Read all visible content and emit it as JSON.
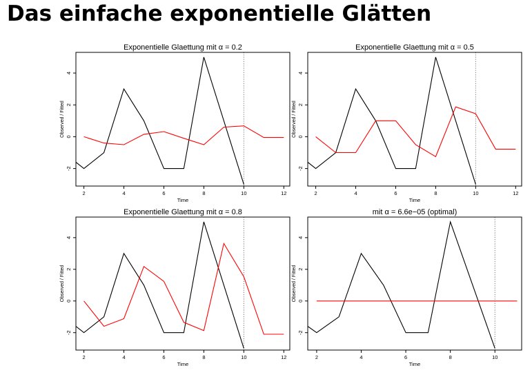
{
  "slide": {
    "title": "Das einfache exponentielle Glätten"
  },
  "chart_data": [
    {
      "type": "line",
      "title": "Exponentielle Glaettung mit α = 0.2",
      "xlabel": "Time",
      "ylabel": "Observed / Fitted",
      "xlim": [
        1.6,
        12.3
      ],
      "ylim": [
        -3.1,
        5.3
      ],
      "xticks": [
        2,
        4,
        6,
        8,
        10,
        12
      ],
      "yticks": [
        -2,
        0,
        2,
        4
      ],
      "vline": 10,
      "series": [
        {
          "color": "#000000",
          "x": [
            1,
            2,
            3,
            4,
            5,
            6,
            7,
            8,
            9,
            10
          ],
          "values": [
            -1,
            -2,
            -1,
            3,
            1,
            -2,
            -2,
            5,
            1,
            -3
          ]
        },
        {
          "color": "#ff0000",
          "x": [
            2,
            3,
            4,
            5,
            6,
            7,
            8,
            9,
            10,
            11,
            12
          ],
          "values": [
            0,
            -0.4,
            -0.5,
            0.15,
            0.32,
            -0.1,
            -0.5,
            0.6,
            0.68,
            -0.05,
            -0.05
          ]
        }
      ]
    },
    {
      "type": "line",
      "title": "Exponentielle Glaettung mit α = 0.5",
      "xlabel": "Time",
      "ylabel": "Observed / Fitted",
      "xlim": [
        1.6,
        12.3
      ],
      "ylim": [
        -3.1,
        5.3
      ],
      "xticks": [
        2,
        4,
        6,
        8,
        10,
        12
      ],
      "yticks": [
        -2,
        0,
        2,
        4
      ],
      "vline": 10,
      "series": [
        {
          "color": "#000000",
          "x": [
            1,
            2,
            3,
            4,
            5,
            6,
            7,
            8,
            9,
            10
          ],
          "values": [
            -1,
            -2,
            -1,
            3,
            1,
            -2,
            -2,
            5,
            1,
            -3
          ]
        },
        {
          "color": "#ff0000",
          "x": [
            2,
            3,
            4,
            5,
            6,
            7,
            8,
            9,
            10,
            11,
            12
          ],
          "values": [
            0,
            -1,
            -1,
            1,
            1,
            -0.5,
            -1.25,
            1.875,
            1.44,
            -0.78,
            -0.78
          ]
        }
      ]
    },
    {
      "type": "line",
      "title": "Exponentielle Glaettung mit α = 0.8",
      "xlabel": "Time",
      "ylabel": "Observed / Fitted",
      "xlim": [
        1.6,
        12.3
      ],
      "ylim": [
        -3.1,
        5.3
      ],
      "xticks": [
        2,
        4,
        6,
        8,
        10,
        12
      ],
      "yticks": [
        -2,
        0,
        2,
        4
      ],
      "vline": 10,
      "series": [
        {
          "color": "#000000",
          "x": [
            1,
            2,
            3,
            4,
            5,
            6,
            7,
            8,
            9,
            10
          ],
          "values": [
            -1,
            -2,
            -1,
            3,
            1,
            -2,
            -2,
            5,
            1,
            -3
          ]
        },
        {
          "color": "#ff0000",
          "x": [
            2,
            3,
            4,
            5,
            6,
            7,
            8,
            9,
            10,
            11,
            12
          ],
          "values": [
            0,
            -1.6,
            -1.12,
            2.18,
            1.24,
            -1.35,
            -1.87,
            3.63,
            1.53,
            -2.1,
            -2.1
          ]
        }
      ]
    },
    {
      "type": "line",
      "title": "mit α = 6.6e−05 (optimal)",
      "xlabel": "Time",
      "ylabel": "Observed / Fitted",
      "xlim": [
        1.6,
        11.2
      ],
      "ylim": [
        -3.1,
        5.3
      ],
      "xticks": [
        2,
        4,
        6,
        8,
        10
      ],
      "yticks": [
        -2,
        0,
        2,
        4
      ],
      "vline": 10,
      "series": [
        {
          "color": "#000000",
          "x": [
            1,
            2,
            3,
            4,
            5,
            6,
            7,
            8,
            9,
            10
          ],
          "values": [
            -1,
            -2,
            -1,
            3,
            1,
            -2,
            -2,
            5,
            1,
            -3
          ]
        },
        {
          "color": "#ff0000",
          "x": [
            2,
            11
          ],
          "values": [
            0,
            0
          ]
        }
      ]
    }
  ]
}
